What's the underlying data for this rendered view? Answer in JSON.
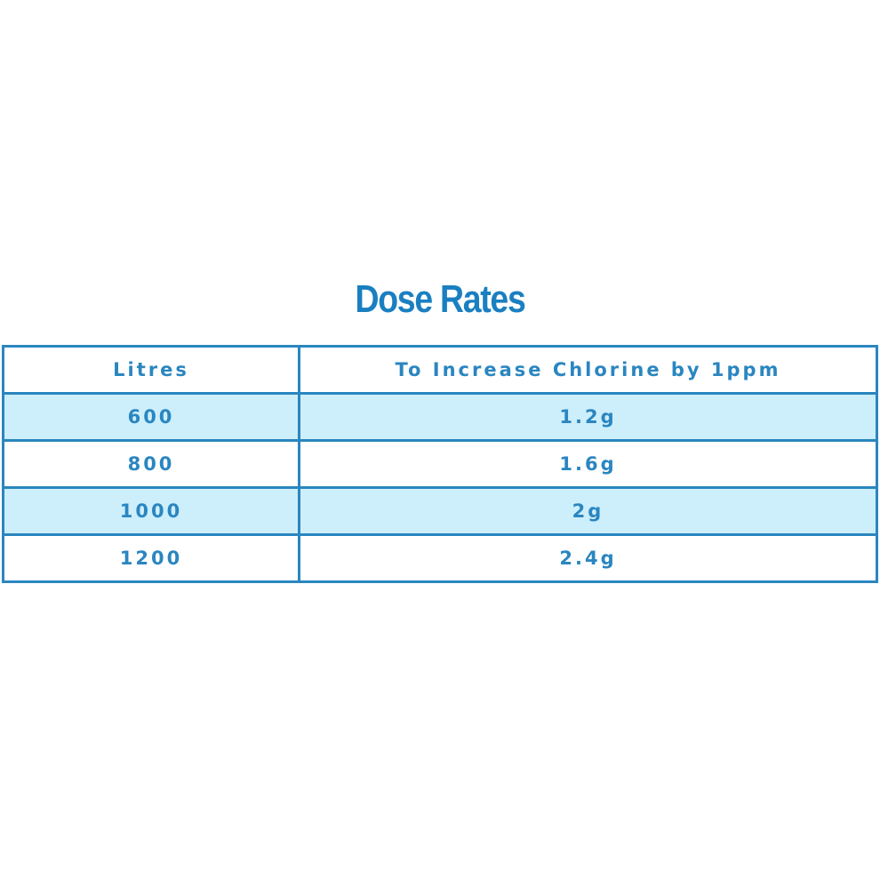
{
  "title": "Dose Rates",
  "table": {
    "header": [
      "Litres",
      "To Increase Chlorine by 1ppm"
    ],
    "rows": [
      [
        600,
        "1.2g"
      ],
      [
        800,
        "1.6g"
      ],
      [
        1000,
        "2g"
      ],
      [
        1200,
        "2.4g"
      ]
    ]
  }
}
